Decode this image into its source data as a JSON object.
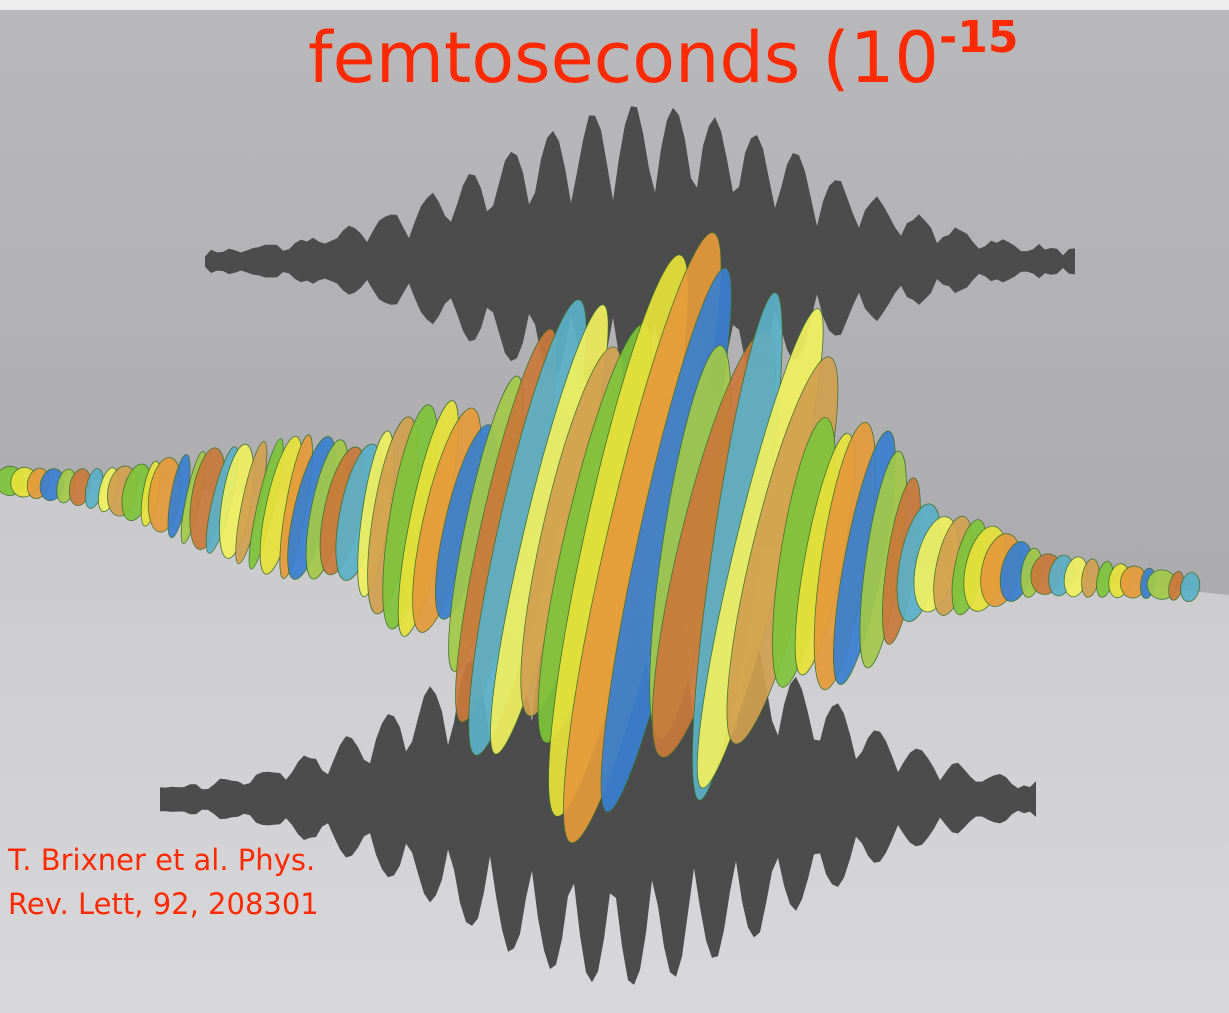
{
  "title": {
    "text": "femtoseconds (10",
    "superscript": "-15"
  },
  "citation": {
    "lines": [
      "T. Brixner et al. Phys.",
      "Rev. Lett, 92, 208301"
    ]
  }
}
